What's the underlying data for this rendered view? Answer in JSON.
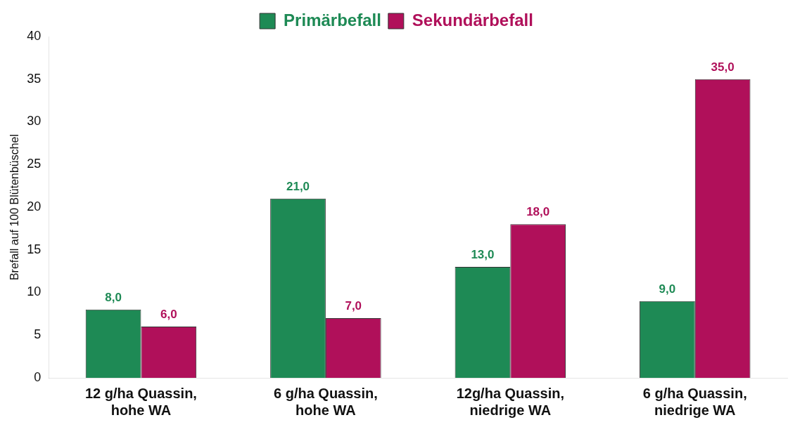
{
  "chart_data": {
    "type": "bar",
    "ylabel": "Brefall auf 100 Blütenbüschel",
    "categories": [
      "12 g/ha Quassin, hohe WA",
      "6 g/ha Quassin, hohe WA",
      "12g/ha Quassin, niedrige WA",
      "6 g/ha Quassin, niedrige WA"
    ],
    "series": [
      {
        "name": "Primärbefall",
        "color": "#1e8a55",
        "values": [
          8,
          21,
          13,
          9
        ],
        "value_labels": [
          "8,0",
          "21,0",
          "13,0",
          "9,0"
        ]
      },
      {
        "name": "Sekundärbefall",
        "color": "#b0105a",
        "values": [
          6,
          7,
          18,
          35
        ],
        "value_labels": [
          "6,0",
          "7,0",
          "18,0",
          "35,0"
        ]
      }
    ],
    "ylim": [
      0,
      40
    ],
    "yticks": [
      0,
      5,
      10,
      15,
      20,
      25,
      30,
      35,
      40
    ],
    "grid": false,
    "legend": "top"
  }
}
